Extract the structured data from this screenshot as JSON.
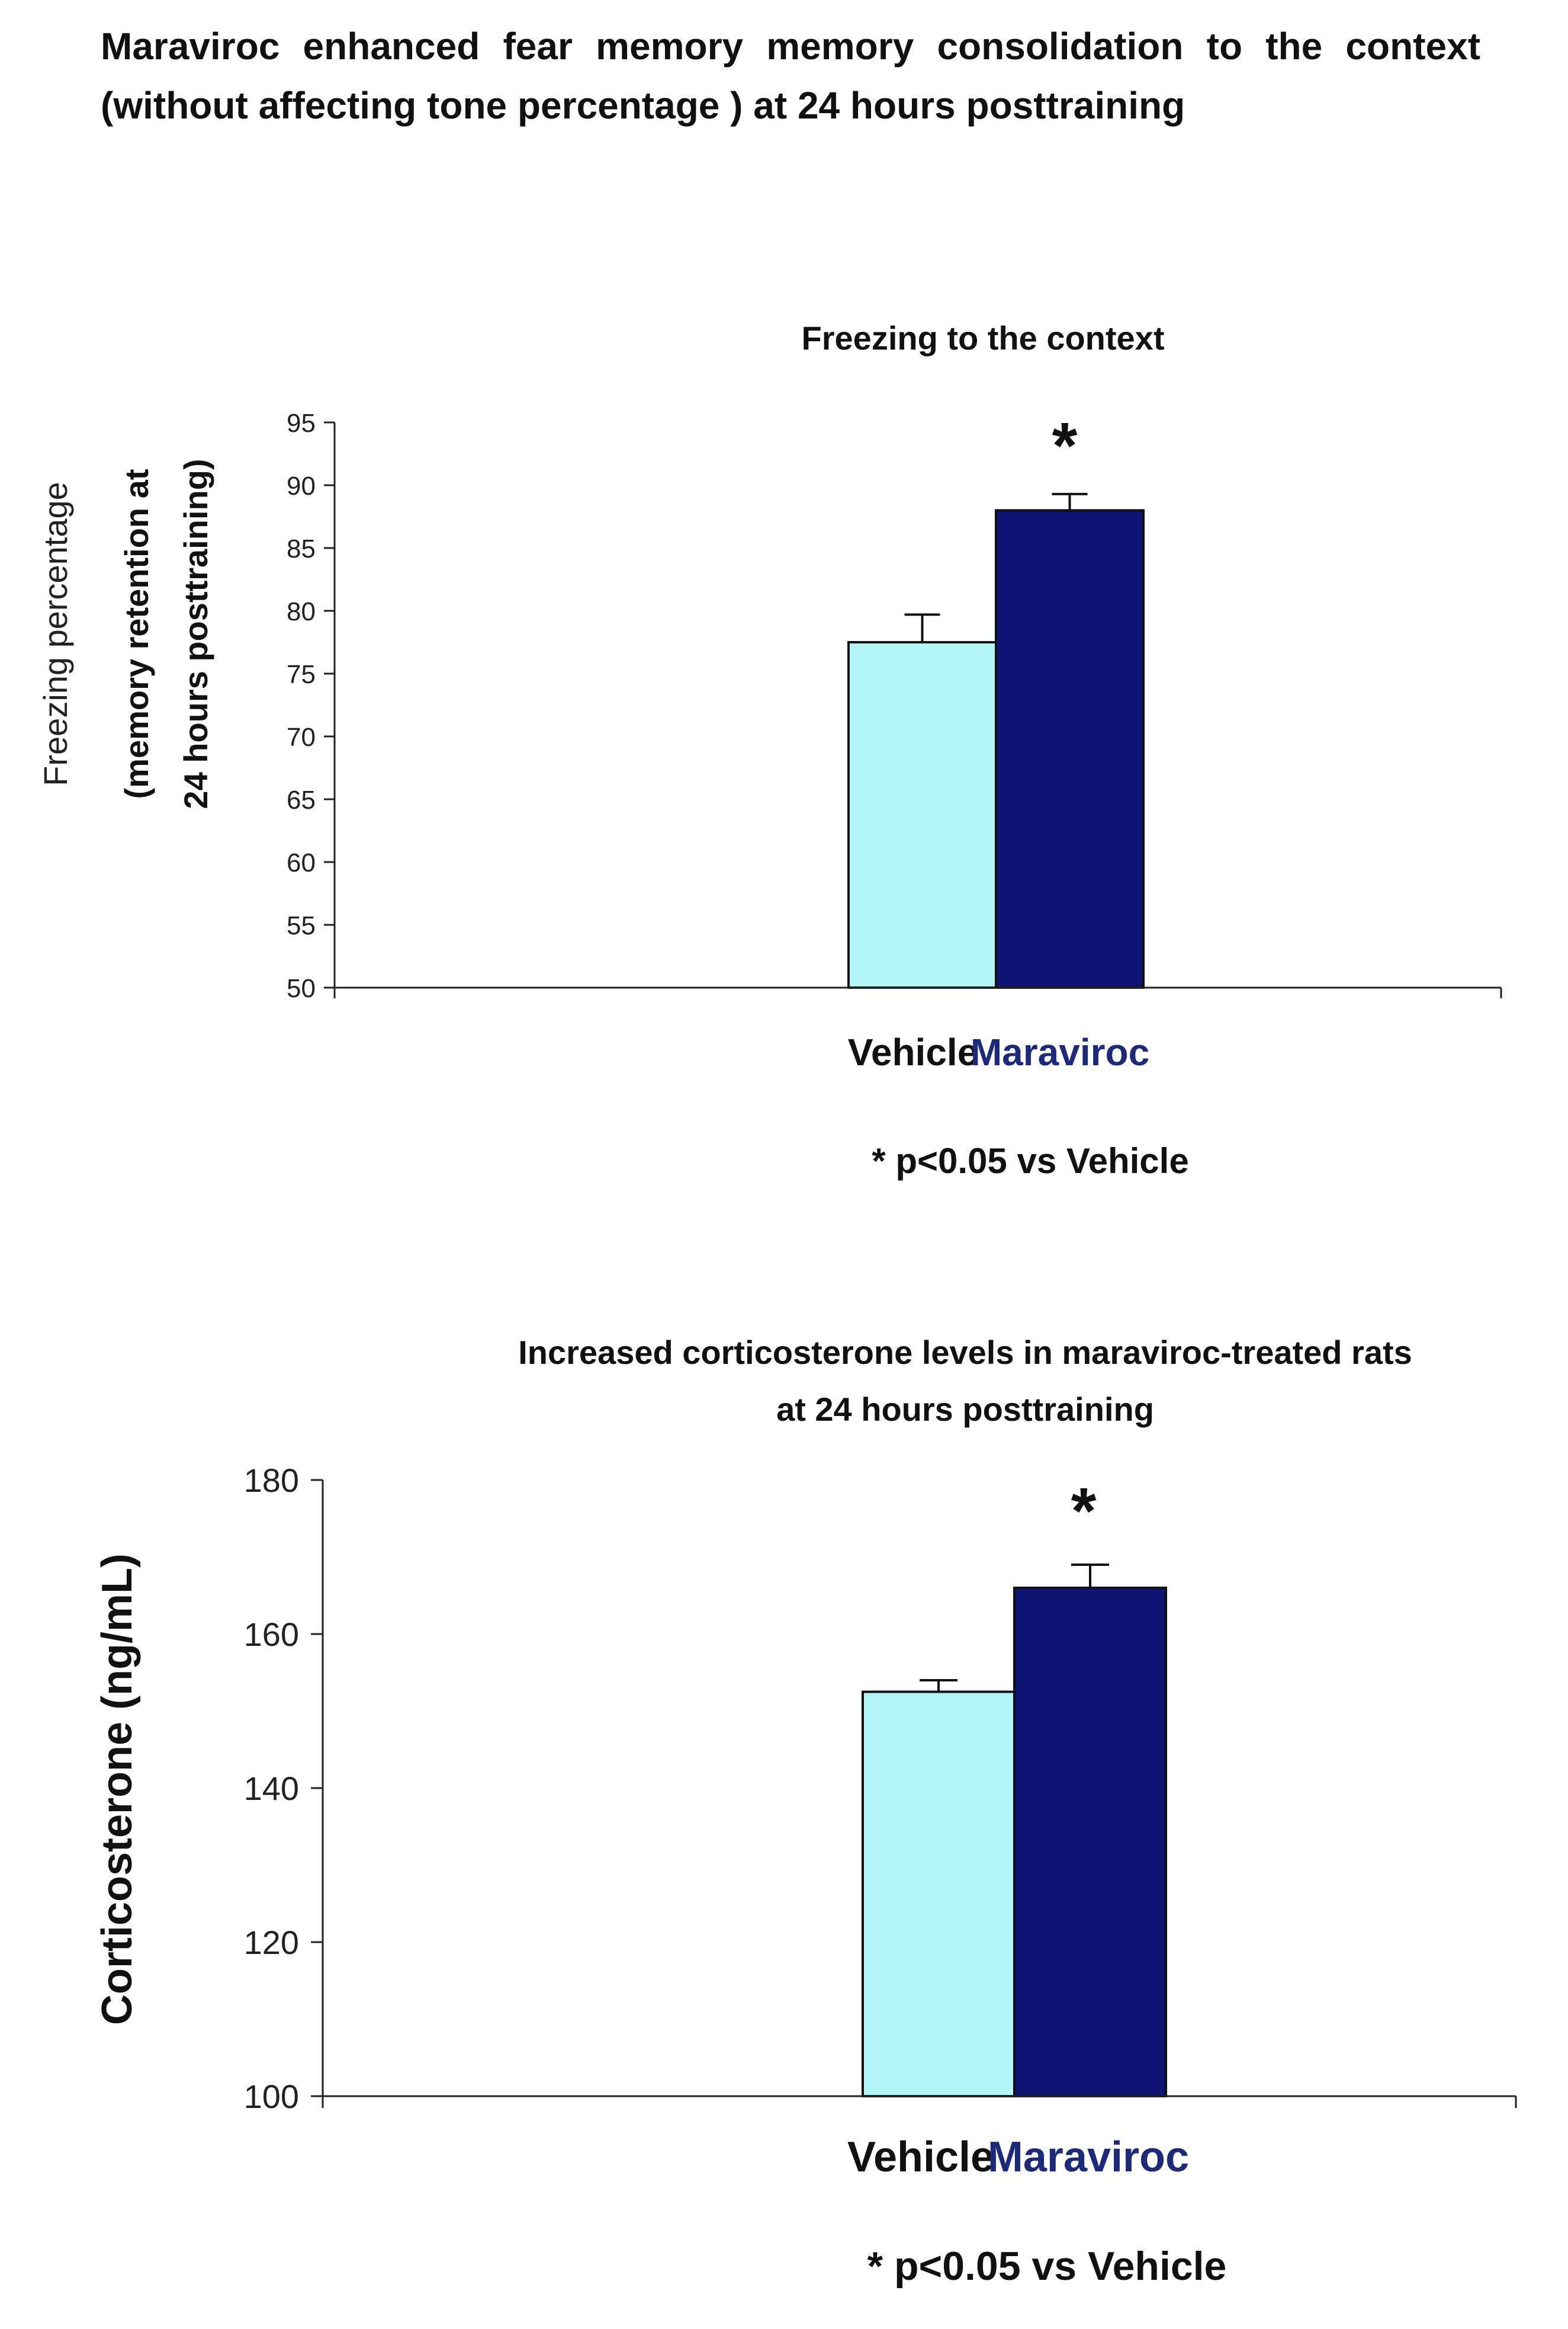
{
  "figure_title": {
    "line1": "Maraviroc enhanced fear memory memory consolidation to the context",
    "line2": "(without affecting tone percentage ) at 24 hours posttraining"
  },
  "colors": {
    "vehicle": "#b3f6f8",
    "maraviroc": "#0d1474",
    "axis": "#222222",
    "maraviroc_label": "#1d2a7a"
  },
  "chart_data": [
    {
      "type": "bar",
      "title": "Freezing to the context",
      "ylabel_lines": [
        "Freezing percentage",
        "(memory retention at",
        "24 hours posttraining)"
      ],
      "xlabel": "",
      "categories": [
        "Vehicle",
        "Maraviroc"
      ],
      "values": [
        77.5,
        88
      ],
      "errors": [
        2.2,
        1.3
      ],
      "ylim": [
        50,
        95
      ],
      "yticks": [
        "95",
        "90",
        "85",
        "80",
        "75",
        "70",
        "65",
        "60",
        "55",
        "50"
      ],
      "significance": [
        "",
        "*"
      ],
      "note": "* p<0.05 vs Vehicle"
    },
    {
      "type": "bar",
      "title_lines": [
        "Increased corticosterone levels in maraviroc-treated rats",
        "at 24 hours posttraining"
      ],
      "ylabel": "Corticosterone (ng/mL)",
      "xlabel": "",
      "categories": [
        "Vehicle",
        "Maraviroc"
      ],
      "values": [
        152.5,
        166
      ],
      "errors": [
        1.5,
        3
      ],
      "ylim": [
        100,
        180
      ],
      "yticks": [
        "180",
        "160",
        "140",
        "120",
        "100"
      ],
      "significance": [
        "",
        "*"
      ],
      "note": "* p<0.05 vs Vehicle"
    }
  ]
}
